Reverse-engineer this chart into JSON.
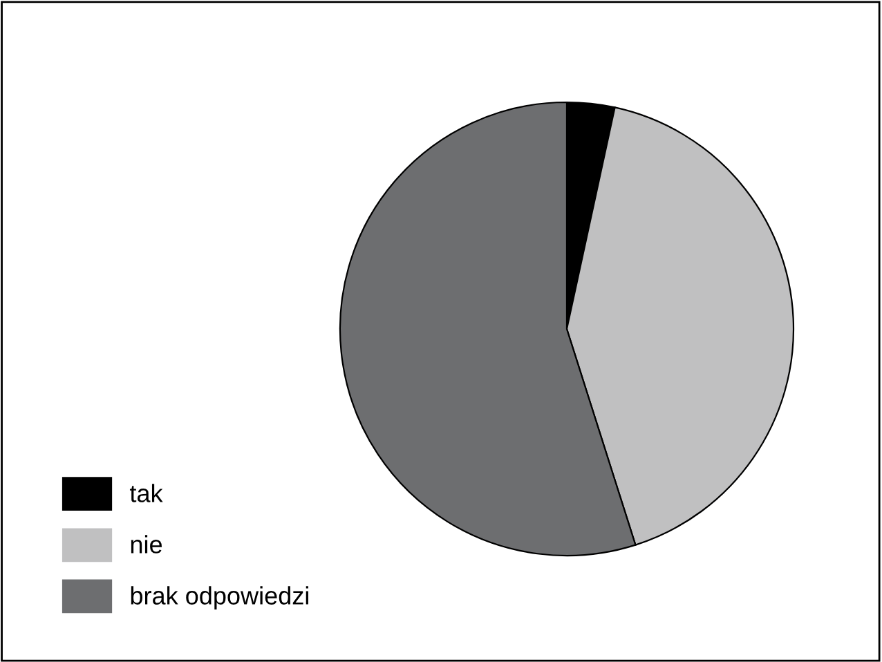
{
  "chart_data": {
    "type": "pie",
    "categories": [
      "tak",
      "nie",
      "brak odpowiedzi"
    ],
    "values": [
      3.4,
      41.7,
      54.9
    ],
    "colors": [
      "#000000",
      "#c0c0c1",
      "#6d6e70"
    ],
    "legend": "bottom left"
  }
}
